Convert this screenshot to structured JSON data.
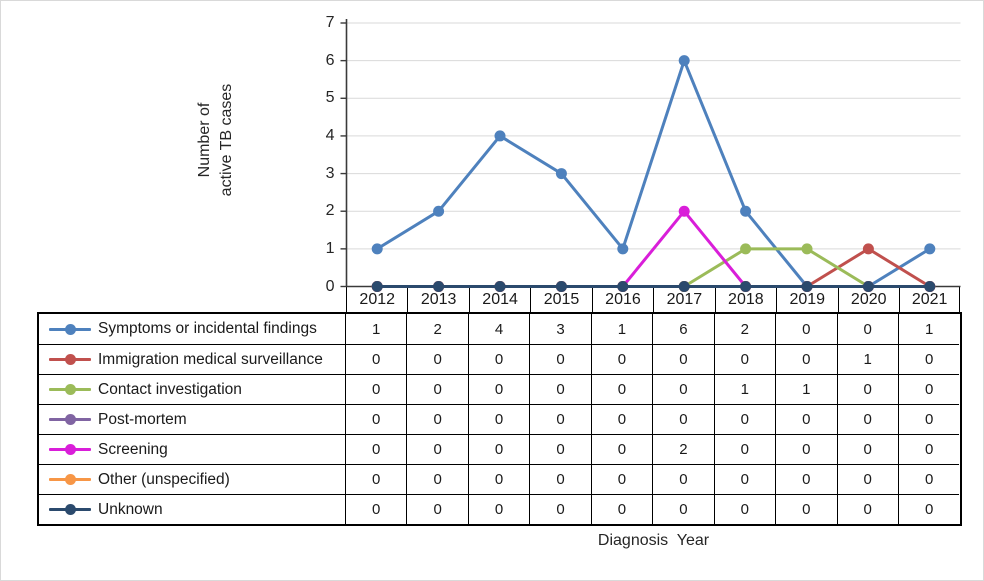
{
  "chart_data": {
    "type": "line",
    "title": "",
    "xlabel": "Diagnosis  Year",
    "ylabel_lines": [
      "Number of",
      "active TB cases"
    ],
    "categories": [
      "2012",
      "2013",
      "2014",
      "2015",
      "2016",
      "2017",
      "2018",
      "2019",
      "2020",
      "2021"
    ],
    "ylim": [
      0,
      7
    ],
    "yticks": [
      0,
      1,
      2,
      3,
      4,
      5,
      6,
      7
    ],
    "grid": true,
    "legend_position": "table-left",
    "colors": {
      "gridline": "#d9d9d9",
      "axis": "#3a3a3a",
      "table_border": "#000000"
    },
    "series": [
      {
        "name": "Symptoms or incidental findings",
        "color": "#4E81BD",
        "values": [
          1,
          2,
          4,
          3,
          1,
          6,
          2,
          0,
          0,
          1
        ]
      },
      {
        "name": "Immigration medical surveillance",
        "color": "#C0504D",
        "values": [
          0,
          0,
          0,
          0,
          0,
          0,
          0,
          0,
          1,
          0
        ]
      },
      {
        "name": "Contact investigation",
        "color": "#9BBB59",
        "values": [
          0,
          0,
          0,
          0,
          0,
          0,
          1,
          1,
          0,
          0
        ]
      },
      {
        "name": "Post-mortem",
        "color": "#8064A2",
        "values": [
          0,
          0,
          0,
          0,
          0,
          0,
          0,
          0,
          0,
          0
        ]
      },
      {
        "name": "Screening",
        "color": "#D91ED9",
        "values": [
          0,
          0,
          0,
          0,
          0,
          2,
          0,
          0,
          0,
          0
        ]
      },
      {
        "name": "Other (unspecified)",
        "color": "#F79646",
        "values": [
          0,
          0,
          0,
          0,
          0,
          0,
          0,
          0,
          0,
          0
        ]
      },
      {
        "name": "Unknown",
        "color": "#2B4A6D",
        "values": [
          0,
          0,
          0,
          0,
          0,
          0,
          0,
          0,
          0,
          0
        ]
      }
    ]
  }
}
